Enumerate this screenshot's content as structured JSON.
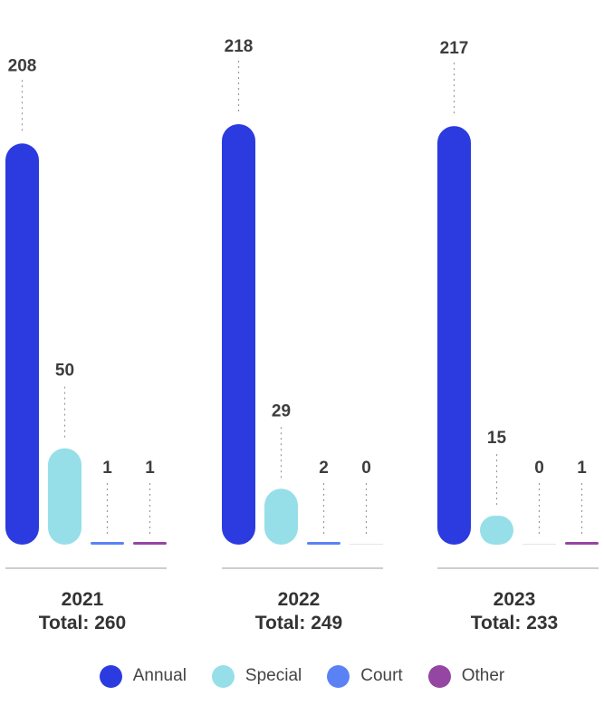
{
  "chart_data": {
    "type": "bar",
    "categories": [
      "2021",
      "2022",
      "2023"
    ],
    "totals": [
      "Total: 260",
      "Total: 249",
      "Total: 233"
    ],
    "series": [
      {
        "name": "Annual",
        "color": "#2b3be0",
        "values": [
          208,
          218,
          217
        ]
      },
      {
        "name": "Special",
        "color": "#96dfe8",
        "values": [
          50,
          29,
          15
        ]
      },
      {
        "name": "Court",
        "color": "#5b82f5",
        "values": [
          1,
          2,
          0
        ]
      },
      {
        "name": "Other",
        "color": "#9446a2",
        "values": [
          1,
          0,
          1
        ]
      }
    ],
    "ylim": [
      0,
      218
    ],
    "legend_position": "bottom"
  },
  "legend": [
    {
      "label": "Annual",
      "color": "#2b3be0"
    },
    {
      "label": "Special",
      "color": "#96dfe8"
    },
    {
      "label": "Court",
      "color": "#5b82f5"
    },
    {
      "label": "Other",
      "color": "#9446a2"
    }
  ]
}
